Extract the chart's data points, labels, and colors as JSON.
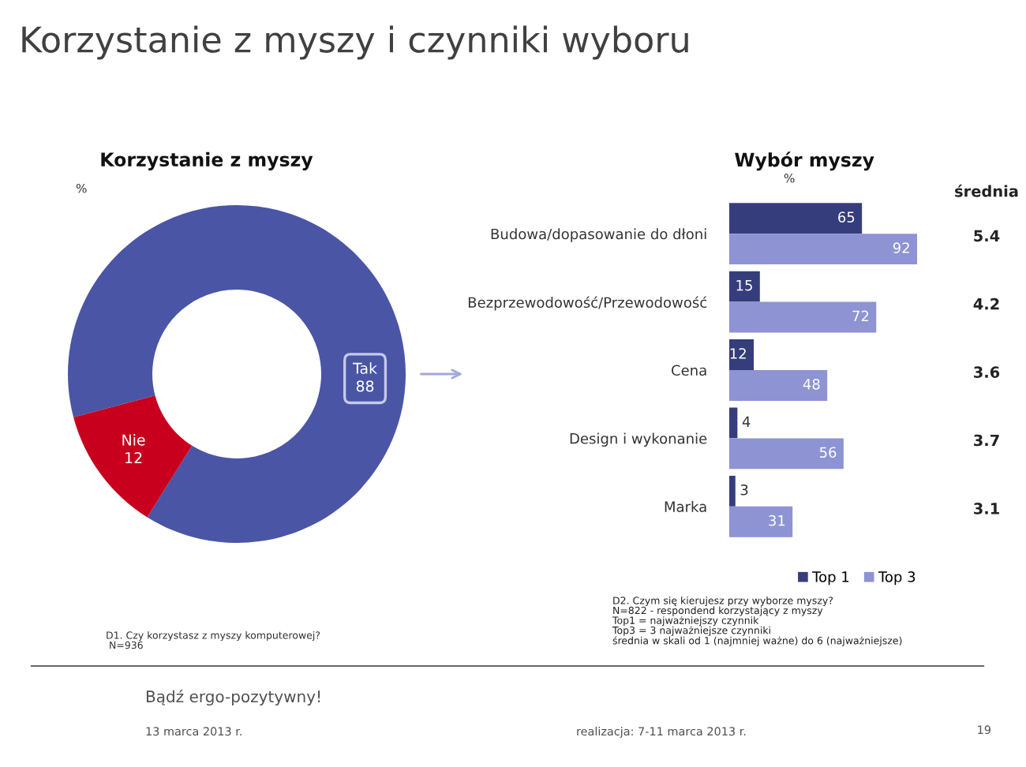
{
  "chart_data": [
    {
      "type": "other",
      "title": "Korzystanie z myszy i czynniki wyboru",
      "annotations": [
        "Bądź ergo-pozytywny!",
        "13 marca 2013 r.",
        "realizacja: 7-11 marca 2013 r.",
        "19"
      ]
    },
    {
      "type": "donut",
      "title": "Korzystanie z myszy",
      "categories": [
        "Tak",
        "Nie"
      ],
      "values": [
        88,
        12
      ],
      "colors": [
        "#4a55a6",
        "#c8001e"
      ],
      "data_labels": true,
      "annotations": [
        "%",
        "D1. Czy korzystasz z myszy komputerowej?\n N=936"
      ]
    },
    {
      "type": "bar",
      "orientation": "horizontal",
      "title": "Wybór myszy",
      "xlabel": "%",
      "categories": [
        "Budowa/dopasowanie do dłoni",
        "Bezprzewodowość/Przewodowość",
        "Cena",
        "Design i wykonanie",
        "Marka"
      ],
      "series": [
        {
          "name": "Top 1",
          "color": "#363d7c",
          "values": [
            65,
            15,
            12,
            4,
            3
          ]
        },
        {
          "name": "Top 3",
          "color": "#8d93d3",
          "values": [
            92,
            72,
            48,
            56,
            31
          ]
        }
      ],
      "data_labels": true,
      "legend": "bottom",
      "annotations": [
        "średnia",
        "5.4",
        "4.2",
        "3.6",
        "3.7",
        "3.1",
        "D2. Czym się kierujesz przy wyborze myszy?\nN=822 - respondend korzystający z myszy\nTop1 = najważniejszy czynnik\nTop3 = 3 najważniejsze czynniki\nśrednia w skali od 1 (najmniej ważne) do 6 (najważniejsze)"
      ]
    }
  ]
}
